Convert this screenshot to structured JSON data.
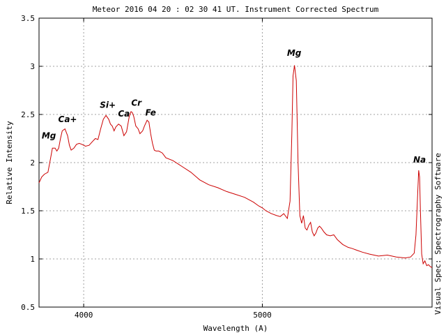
{
  "chart_data": {
    "type": "line",
    "title": "Meteor 2016 04 20 : 02 30 41 UT. Instrument Corrected Spectrum",
    "xlabel": "Wavelength (A)",
    "ylabel": "Relative Intensity",
    "side_label": "Visual Spec: Spectrography Software",
    "xlim": [
      3750,
      5950
    ],
    "ylim": [
      0.5,
      3.5
    ],
    "xticks": [
      4000,
      5000
    ],
    "yticks": [
      0.5,
      1,
      1.5,
      2,
      2.5,
      3,
      3.5
    ],
    "ytick_labels": [
      "0.5",
      "1",
      "1.5",
      "2",
      "2.5",
      "3",
      "3.5"
    ],
    "xtick_labels": [
      "4000",
      "5000"
    ],
    "grid": true,
    "line_color": "#cc0000",
    "series": [
      {
        "x": [
          3750,
          3765,
          3780,
          3800,
          3815,
          3825,
          3840,
          3850,
          3860,
          3870,
          3880,
          3895,
          3910,
          3920,
          3930,
          3945,
          3960,
          3975,
          3990,
          4010,
          4030,
          4050,
          4065,
          4080,
          4095,
          4110,
          4125,
          4140,
          4150,
          4160,
          4170,
          4180,
          4195,
          4210,
          4225,
          4240,
          4255,
          4265,
          4272,
          4280,
          4292,
          4305,
          4315,
          4330,
          4340,
          4355,
          4365,
          4375,
          4385,
          4395,
          4405,
          4420,
          4440,
          4460,
          4500,
          4550,
          4600,
          4650,
          4700,
          4750,
          4800,
          4850,
          4900,
          4950,
          4980,
          5000,
          5020,
          5050,
          5080,
          5100,
          5120,
          5140,
          5155,
          5165,
          5172,
          5180,
          5190,
          5200,
          5210,
          5220,
          5230,
          5240,
          5250,
          5260,
          5270,
          5280,
          5290,
          5300,
          5310,
          5320,
          5330,
          5345,
          5360,
          5380,
          5400,
          5420,
          5450,
          5480,
          5500,
          5530,
          5560,
          5600,
          5650,
          5700,
          5750,
          5800,
          5830,
          5850,
          5860,
          5870,
          5875,
          5880,
          5885,
          5892,
          5900,
          5910,
          5920,
          5930,
          5940,
          5950
        ],
        "y": [
          1.79,
          1.85,
          1.88,
          1.9,
          2.05,
          2.15,
          2.15,
          2.12,
          2.15,
          2.25,
          2.33,
          2.35,
          2.28,
          2.18,
          2.13,
          2.15,
          2.19,
          2.2,
          2.19,
          2.17,
          2.18,
          2.22,
          2.25,
          2.24,
          2.35,
          2.45,
          2.49,
          2.45,
          2.4,
          2.38,
          2.33,
          2.37,
          2.4,
          2.38,
          2.28,
          2.32,
          2.48,
          2.53,
          2.52,
          2.48,
          2.38,
          2.35,
          2.3,
          2.33,
          2.38,
          2.44,
          2.42,
          2.3,
          2.2,
          2.13,
          2.12,
          2.12,
          2.1,
          2.05,
          2.02,
          1.96,
          1.9,
          1.82,
          1.77,
          1.74,
          1.7,
          1.67,
          1.64,
          1.59,
          1.55,
          1.53,
          1.5,
          1.47,
          1.45,
          1.44,
          1.47,
          1.42,
          1.6,
          2.3,
          2.9,
          3.01,
          2.85,
          2.0,
          1.45,
          1.37,
          1.45,
          1.32,
          1.3,
          1.35,
          1.38,
          1.28,
          1.24,
          1.27,
          1.32,
          1.34,
          1.32,
          1.28,
          1.25,
          1.24,
          1.25,
          1.2,
          1.15,
          1.12,
          1.11,
          1.09,
          1.07,
          1.05,
          1.03,
          1.04,
          1.02,
          1.01,
          1.02,
          1.06,
          1.25,
          1.7,
          1.92,
          1.85,
          1.5,
          1.05,
          0.95,
          0.98,
          0.93,
          0.94,
          0.92,
          0.91
        ]
      }
    ],
    "annotations": [
      {
        "text": "Mg",
        "x": 3805,
        "y": 2.25
      },
      {
        "text": "Ca+",
        "x": 3910,
        "y": 2.42
      },
      {
        "text": "Si+",
        "x": 4135,
        "y": 2.57
      },
      {
        "text": "Ca",
        "x": 4225,
        "y": 2.48
      },
      {
        "text": "Cr",
        "x": 4295,
        "y": 2.59
      },
      {
        "text": "Fe",
        "x": 4375,
        "y": 2.49
      },
      {
        "text": "Mg",
        "x": 5178,
        "y": 3.11
      },
      {
        "text": "Na",
        "x": 5880,
        "y": 2.0
      }
    ]
  }
}
